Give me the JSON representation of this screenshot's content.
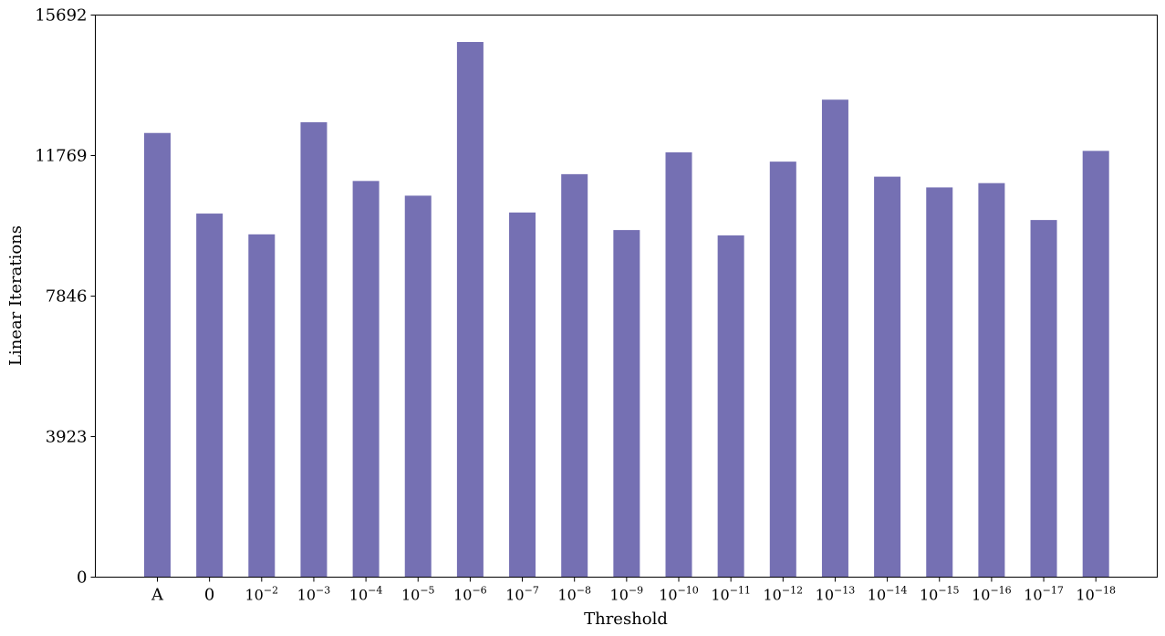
{
  "chart_data": {
    "type": "bar",
    "title": "",
    "xlabel": "Threshold",
    "ylabel": "Linear Iterations",
    "ylim": [
      0,
      15692
    ],
    "yticks": [
      0,
      3923,
      7846,
      11769,
      15692
    ],
    "grid": false,
    "bar_color": "#7570b3",
    "categories": [
      {
        "label": "A",
        "base": "",
        "exp": ""
      },
      {
        "label": "0",
        "base": "",
        "exp": ""
      },
      {
        "label": "10^-2",
        "base": "10",
        "exp": "−2"
      },
      {
        "label": "10^-3",
        "base": "10",
        "exp": "−3"
      },
      {
        "label": "10^-4",
        "base": "10",
        "exp": "−4"
      },
      {
        "label": "10^-5",
        "base": "10",
        "exp": "−5"
      },
      {
        "label": "10^-6",
        "base": "10",
        "exp": "−6"
      },
      {
        "label": "10^-7",
        "base": "10",
        "exp": "−7"
      },
      {
        "label": "10^-8",
        "base": "10",
        "exp": "−8"
      },
      {
        "label": "10^-9",
        "base": "10",
        "exp": "−9"
      },
      {
        "label": "10^-10",
        "base": "10",
        "exp": "−10"
      },
      {
        "label": "10^-11",
        "base": "10",
        "exp": "−11"
      },
      {
        "label": "10^-12",
        "base": "10",
        "exp": "−12"
      },
      {
        "label": "10^-13",
        "base": "10",
        "exp": "−13"
      },
      {
        "label": "10^-14",
        "base": "10",
        "exp": "−14"
      },
      {
        "label": "10^-15",
        "base": "10",
        "exp": "−15"
      },
      {
        "label": "10^-16",
        "base": "10",
        "exp": "−16"
      },
      {
        "label": "10^-17",
        "base": "10",
        "exp": "−17"
      },
      {
        "label": "10^-18",
        "base": "10",
        "exp": "−18"
      }
    ],
    "values": [
      12400,
      10150,
      9570,
      12700,
      11060,
      10650,
      14940,
      10180,
      11250,
      9690,
      11860,
      9540,
      11600,
      13330,
      11180,
      10880,
      11000,
      9970,
      11900
    ]
  }
}
